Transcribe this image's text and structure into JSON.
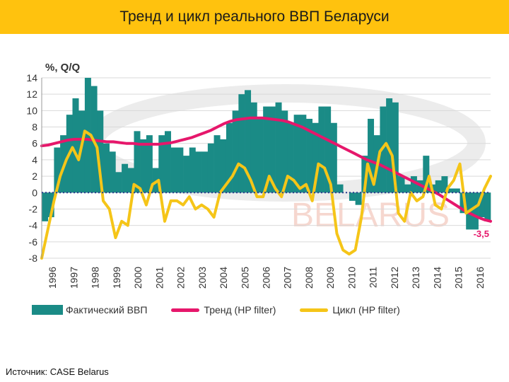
{
  "slide": {
    "title": "Тренд и цикл реального ВВП Беларуси",
    "source": "Источник: CASE Belarus",
    "watermark": "BELARUS"
  },
  "colors": {
    "title_bg": "#ffc20e",
    "bars": "#1a8b86",
    "trend": "#e6176b",
    "cycle": "#f5c518",
    "grid": "#d9d9d9"
  },
  "chart_data": {
    "type": "bar",
    "ylabel": "%, Q/Q",
    "ylim": [
      -8,
      14
    ],
    "yticks": [
      "14",
      "12",
      "10",
      "8",
      "6",
      "4",
      "2",
      "0",
      "-2",
      "-4",
      "-6",
      "-8"
    ],
    "years": [
      "1996",
      "1997",
      "1998",
      "1999",
      "2000",
      "2001",
      "2002",
      "2003",
      "2004",
      "2005",
      "2006",
      "2007",
      "2008",
      "2009",
      "2010",
      "2011",
      "2012",
      "2013",
      "2014",
      "2015",
      "2016"
    ],
    "grid": true,
    "legend_position": "bottom",
    "last_value_label": "-3,5",
    "series": [
      {
        "name": "Фактический ВВП",
        "type": "bar",
        "values": [
          -3.5,
          -3.0,
          5.5,
          7.0,
          9.5,
          11.5,
          10.0,
          14.0,
          13.0,
          10.0,
          6.0,
          5.0,
          2.5,
          3.5,
          3.0,
          7.5,
          6.5,
          7.0,
          3.0,
          7.0,
          7.5,
          5.5,
          5.5,
          4.5,
          5.5,
          5.0,
          5.0,
          6.0,
          7.0,
          6.5,
          8.5,
          10.0,
          12.0,
          12.5,
          11.0,
          9.0,
          10.5,
          10.5,
          11.0,
          10.0,
          8.5,
          9.5,
          9.5,
          9.0,
          8.5,
          10.5,
          10.5,
          8.5,
          1.0,
          0.0,
          -1.0,
          -1.5,
          4.5,
          9.0,
          7.0,
          10.5,
          11.5,
          11.0,
          2.0,
          1.0,
          2.0,
          1.5,
          4.5,
          1.0,
          1.5,
          2.0,
          0.5,
          0.5,
          -2.5,
          -4.5,
          -4.5,
          -3.0,
          -3.5
        ]
      },
      {
        "name": "Тренд (HP filter)",
        "type": "line",
        "values": [
          5.7,
          5.8,
          6.0,
          6.2,
          6.4,
          6.5,
          6.5,
          6.5,
          6.4,
          6.3,
          6.2,
          6.2,
          6.1,
          6.0,
          6.0,
          5.9,
          5.9,
          5.9,
          5.9,
          6.0,
          6.1,
          6.3,
          6.5,
          6.7,
          7.0,
          7.3,
          7.6,
          8.0,
          8.4,
          8.7,
          8.9,
          9.0,
          9.1,
          9.1,
          9.1,
          9.0,
          8.9,
          8.8,
          8.6,
          8.3,
          8.0,
          7.6,
          7.2,
          6.8,
          6.4,
          6.0,
          5.6,
          5.2,
          4.8,
          4.4,
          4.0,
          3.7,
          3.4,
          3.0,
          2.6,
          2.2,
          1.8,
          1.4,
          1.0,
          0.6,
          0.2,
          -0.2,
          -0.7,
          -1.2,
          -1.7,
          -2.2,
          -2.6,
          -3.0,
          -3.3,
          -3.5
        ]
      },
      {
        "name": "Цикл (HP filter)",
        "type": "line",
        "values": [
          -8.0,
          -4.5,
          -1.0,
          2.0,
          4.0,
          5.5,
          4.0,
          7.5,
          7.0,
          5.5,
          -1.0,
          -2.0,
          -5.5,
          -3.5,
          -4.0,
          1.0,
          0.5,
          -1.5,
          1.0,
          1.5,
          -3.5,
          -1.0,
          -1.0,
          -1.5,
          -0.5,
          -2.0,
          -1.5,
          -2.0,
          -3.0,
          0.0,
          1.0,
          2.0,
          3.5,
          3.0,
          1.5,
          -0.5,
          -0.5,
          2.0,
          0.5,
          -0.5,
          2.0,
          1.5,
          0.5,
          1.0,
          -1.0,
          3.5,
          3.0,
          1.0,
          -5.0,
          -7.0,
          -7.5,
          -7.0,
          -3.0,
          3.5,
          1.0,
          5.0,
          6.0,
          4.5,
          -2.5,
          -3.5,
          0.0,
          -1.0,
          -0.5,
          2.0,
          -1.5,
          -2.0,
          0.5,
          1.5,
          3.5,
          -2.5,
          -2.0,
          -1.5,
          0.5,
          2.0
        ]
      }
    ]
  }
}
